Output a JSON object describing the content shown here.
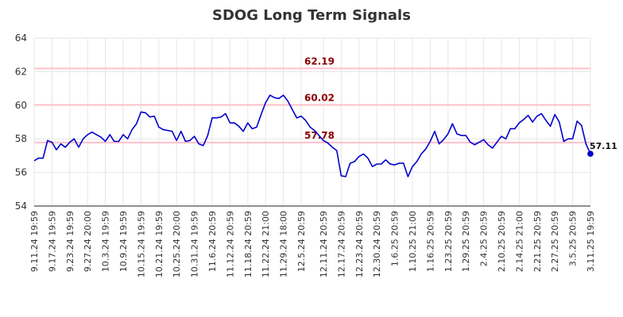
{
  "chart_data": {
    "type": "line",
    "title": "SDOG Long Term Signals",
    "xlabel": "",
    "ylabel": "",
    "ylim": [
      54,
      64
    ],
    "yticks": [
      54,
      56,
      58,
      60,
      62,
      64
    ],
    "grid": true,
    "line_color": "#0000cc",
    "reference_line_color": "#ffc0cb",
    "reference_label_color": "#8b0000",
    "reference_lines": [
      {
        "value": 62.19,
        "label": "62.19"
      },
      {
        "value": 60.02,
        "label": "60.02"
      },
      {
        "value": 57.78,
        "label": "57.78"
      }
    ],
    "x_tick_labels": [
      "9.11.24 19:59",
      "9.17.24 19:59",
      "9.23.24 19:59",
      "9.27.24 20:00",
      "10.3.24 19:59",
      "10.9.24 19:59",
      "10.15.24 19:59",
      "10.21.24 19:59",
      "10.25.24 20:00",
      "10.31.24 19:59",
      "11.6.24 20:59",
      "11.12.24 20:59",
      "11.18.24 20:59",
      "11.22.24 21:00",
      "11.29.24 18:00",
      "12.5.24 20:59",
      "12.11.24 20:59",
      "12.17.24 20:59",
      "12.23.24 20:59",
      "12.30.24 20:59",
      "1.6.25 20:59",
      "1.10.25 21:00",
      "1.16.25 20:59",
      "1.23.25 20:59",
      "1.29.25 20:59",
      "2.4.25 20:59",
      "2.10.25 20:59",
      "2.14.25 21:00",
      "2.21.25 20:59",
      "2.27.25 20:59",
      "3.5.25 20:59",
      "3.11.25 19:59"
    ],
    "series": [
      {
        "values": [
          56.7,
          56.85,
          56.85,
          57.9,
          57.8,
          57.35,
          57.7,
          57.5,
          57.8,
          58.0,
          57.5,
          58.0,
          58.25,
          58.4,
          58.25,
          58.1,
          57.85,
          58.25,
          57.85,
          57.85,
          58.25,
          58.0,
          58.55,
          58.9,
          59.6,
          59.55,
          59.3,
          59.35,
          58.7,
          58.55,
          58.5,
          58.45,
          57.9,
          58.45,
          57.85,
          57.9,
          58.15,
          57.7,
          57.6,
          58.2,
          59.25,
          59.25,
          59.3,
          59.5,
          58.95,
          58.95,
          58.75,
          58.45,
          58.95,
          58.6,
          58.7,
          59.45,
          60.15,
          60.6,
          60.45,
          60.4,
          60.6,
          60.25,
          59.75,
          59.25,
          59.35,
          59.1,
          58.7,
          58.5,
          58.2,
          57.9,
          57.75,
          57.5,
          57.3,
          55.8,
          55.75,
          56.55,
          56.65,
          56.95,
          57.1,
          56.85,
          56.35,
          56.5,
          56.5,
          56.75,
          56.5,
          56.45,
          56.55,
          56.55,
          55.75,
          56.35,
          56.65,
          57.1,
          57.4,
          57.85,
          58.45,
          57.7,
          57.95,
          58.3,
          58.9,
          58.3,
          58.2,
          58.2,
          57.8,
          57.65,
          57.8,
          57.95,
          57.65,
          57.45,
          57.8,
          58.15,
          58.0,
          58.6,
          58.6,
          58.95,
          59.15,
          59.4,
          59.0,
          59.35,
          59.5,
          59.1,
          58.75,
          59.45,
          59.0,
          57.85,
          58.0,
          58.0,
          59.05,
          58.8,
          57.7,
          57.11
        ]
      }
    ],
    "last_value_label": "57.11"
  }
}
